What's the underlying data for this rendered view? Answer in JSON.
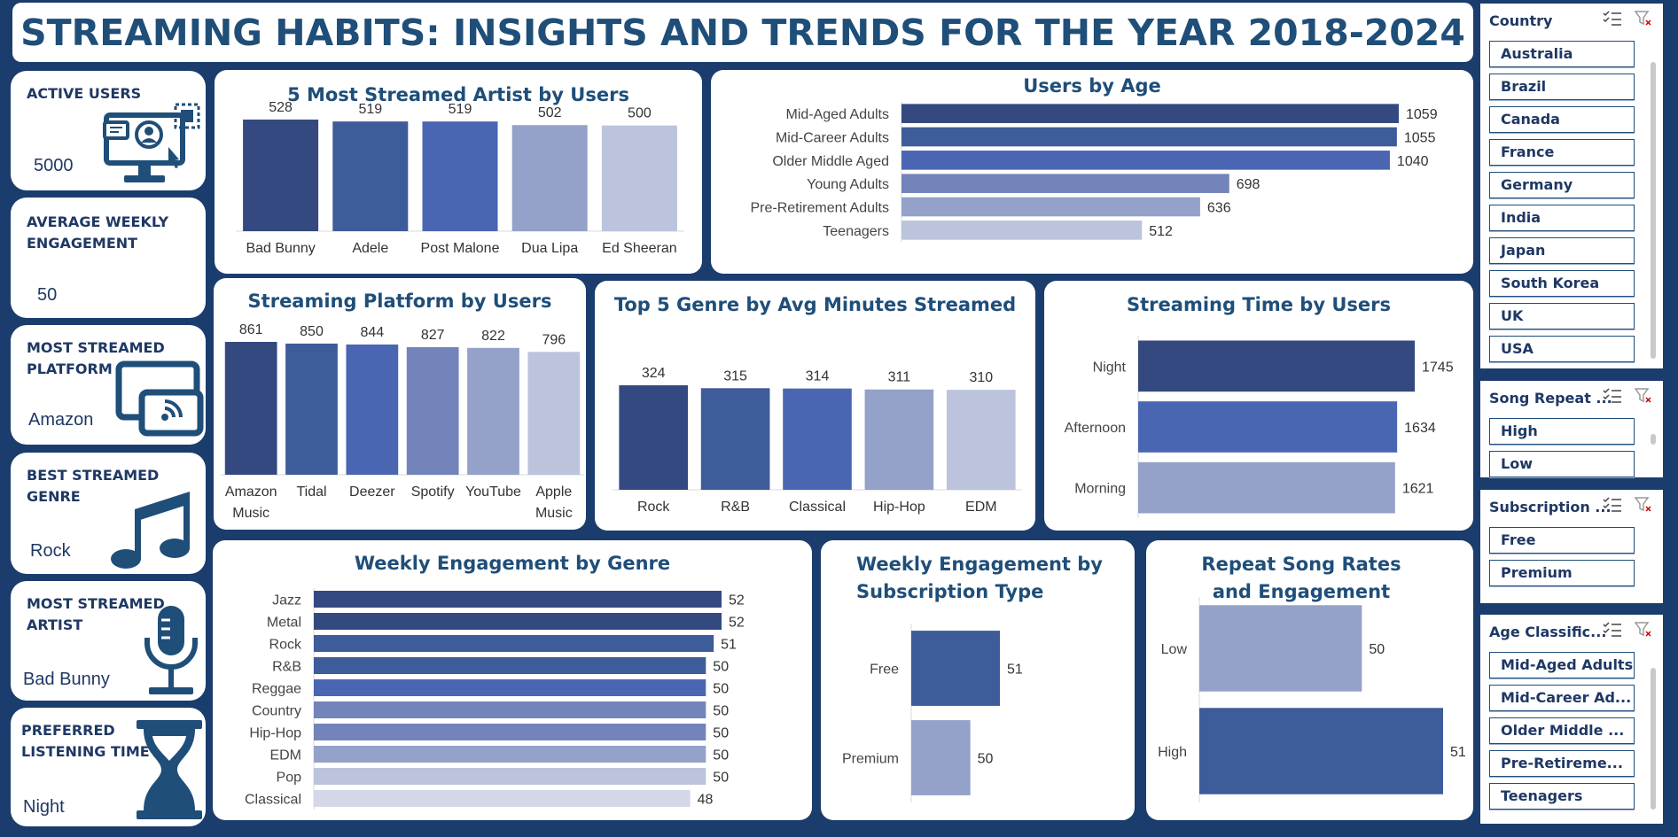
{
  "title": "STREAMING HABITS: INSIGHTS AND TRENDS FOR THE YEAR 2018-2024",
  "colors": {
    "background": "#1b3d6d",
    "title": "#1f4e79",
    "shades": [
      "#34497f",
      "#3e5b9a",
      "#4a66b3",
      "#7384bb",
      "#94a2c9",
      "#bcc3dc",
      "#d3d7e8"
    ]
  },
  "kpis": [
    {
      "label": "ACTIVE USERS",
      "value": "5000",
      "icon": "computer-user-icon"
    },
    {
      "label": "AVERAGE WEEKLY ENGAGEMENT",
      "value": "50",
      "icon": ""
    },
    {
      "label": "MOST STREAMED PLATFORM",
      "value": "Amazon",
      "icon": "cast-icon"
    },
    {
      "label": "BEST STREAMED GENRE",
      "value": "Rock",
      "icon": "music-note-icon"
    },
    {
      "label": "MOST STREAMED ARTIST",
      "value": "Bad Bunny",
      "icon": "microphone-icon"
    },
    {
      "label": "PREFERRED LISTENING TIME",
      "value": "Night",
      "icon": "hourglass-icon"
    }
  ],
  "chart_data": [
    {
      "id": "artist",
      "type": "bar",
      "title": "5 Most Streamed Artist by Users",
      "categories": [
        "Bad Bunny",
        "Adele",
        "Post Malone",
        "Dua Lipa",
        "Ed Sheeran"
      ],
      "values": [
        528,
        519,
        519,
        502,
        500
      ]
    },
    {
      "id": "age",
      "type": "bar",
      "orientation": "horizontal",
      "title": "Users  by Age",
      "categories": [
        "Mid-Aged Adults",
        "Mid-Career Adults",
        "Older Middle Aged",
        "Young Adults",
        "Pre-Retirement Adults",
        "Teenagers"
      ],
      "values": [
        1059,
        1055,
        1040,
        698,
        636,
        512
      ]
    },
    {
      "id": "platform",
      "type": "bar",
      "title": "Streaming Platform by Users",
      "categories": [
        "Amazon Music",
        "Tidal",
        "Deezer",
        "Spotify",
        "YouTube",
        "Apple Music"
      ],
      "values": [
        861,
        850,
        844,
        827,
        822,
        796
      ]
    },
    {
      "id": "genre_minutes",
      "type": "bar",
      "title": "Top 5 Genre by Avg Minutes Streamed",
      "categories": [
        "Rock",
        "R&B",
        "Classical",
        "Hip-Hop",
        "EDM"
      ],
      "values": [
        324,
        315,
        314,
        311,
        310
      ]
    },
    {
      "id": "time",
      "type": "bar",
      "orientation": "horizontal",
      "title": "Streaming Time by Users",
      "categories": [
        "Night",
        "Afternoon",
        "Morning"
      ],
      "values": [
        1745,
        1634,
        1621
      ]
    },
    {
      "id": "weekly_genre",
      "type": "bar",
      "orientation": "horizontal",
      "title": "Weekly Engagement by Genre",
      "categories": [
        "Jazz",
        "Metal",
        "Rock",
        "R&B",
        "Reggae",
        "Country",
        "Hip-Hop",
        "EDM",
        "Pop",
        "Classical"
      ],
      "values": [
        52,
        52,
        51,
        50,
        50,
        50,
        50,
        50,
        50,
        48
      ]
    },
    {
      "id": "subscription",
      "type": "bar",
      "orientation": "horizontal",
      "title": "Weekly Engagement by Subscription Type",
      "categories": [
        "Free",
        "Premium"
      ],
      "values": [
        51,
        50
      ]
    },
    {
      "id": "repeat",
      "type": "bar",
      "orientation": "horizontal",
      "title": "Repeat Song Rates and Engagement",
      "categories": [
        "Low",
        "High"
      ],
      "values": [
        50,
        51
      ]
    }
  ],
  "slicers": [
    {
      "title": "Country",
      "items": [
        "Australia",
        "Brazil",
        "Canada",
        "France",
        "Germany",
        "India",
        "Japan",
        "South Korea",
        "UK",
        "USA"
      ]
    },
    {
      "title": "Song Repeat ...",
      "items": [
        "High",
        "Low"
      ]
    },
    {
      "title": "Subscription ...",
      "items": [
        "Free",
        "Premium"
      ]
    },
    {
      "title": "Age Classific...",
      "items": [
        "Mid-Aged Adults",
        "Mid-Career Ad...",
        "Older Middle ...",
        "Pre-Retireme...",
        "Teenagers"
      ]
    }
  ]
}
